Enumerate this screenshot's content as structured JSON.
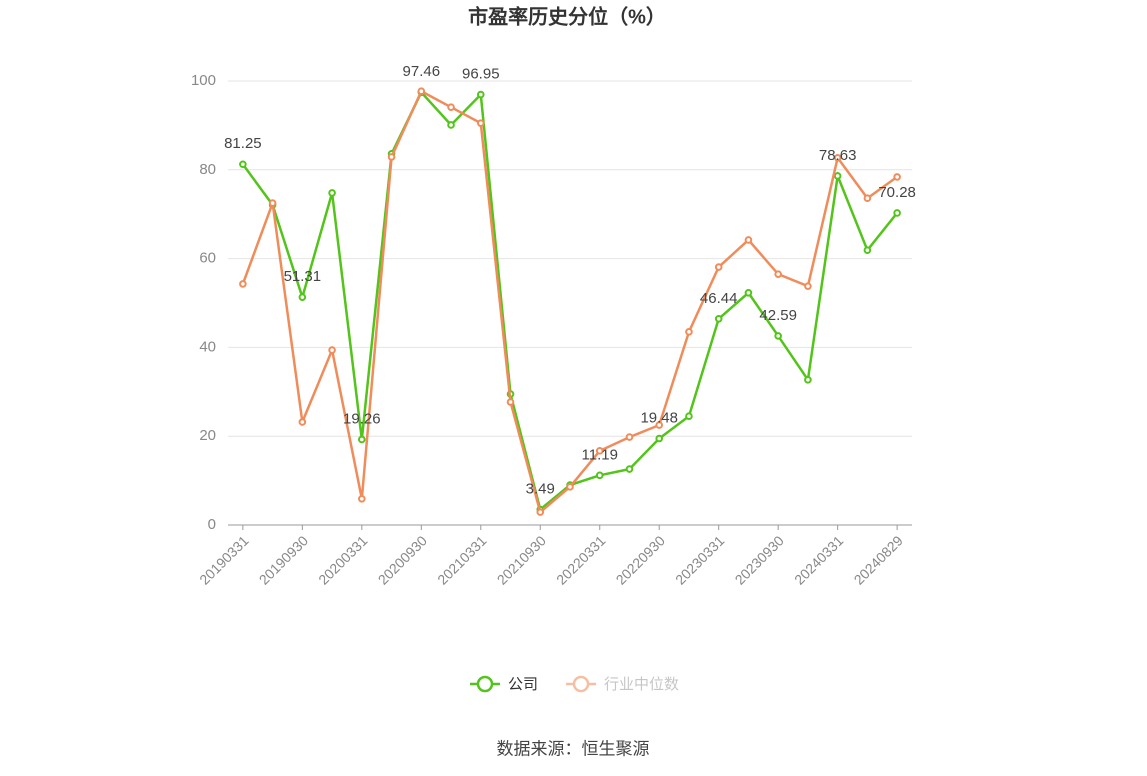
{
  "chart_data": {
    "type": "line",
    "title": "市盈率历史分位（%）",
    "categories": [
      "20190331",
      null,
      "20190930",
      null,
      "20200331",
      null,
      "20200930",
      null,
      "20210331",
      null,
      "20210930",
      null,
      "20220331",
      null,
      "20220930",
      null,
      "20230331",
      null,
      "20230930",
      null,
      "20240331",
      null,
      "20240829"
    ],
    "series": [
      {
        "name": "公司",
        "color": "#52c41a",
        "values": [
          81.25,
          72.1,
          51.31,
          74.8,
          19.26,
          83.6,
          97.46,
          90.1,
          96.95,
          29.5,
          3.49,
          9.0,
          11.19,
          12.6,
          19.48,
          24.5,
          46.44,
          52.3,
          42.59,
          32.7,
          78.63,
          61.9,
          70.28
        ]
      },
      {
        "name": "行业中位数",
        "color": "#f08c5a",
        "values": [
          54.3,
          72.5,
          23.2,
          39.4,
          5.9,
          82.9,
          97.7,
          94.1,
          90.5,
          27.7,
          2.9,
          8.6,
          16.7,
          19.8,
          22.5,
          43.5,
          58.1,
          64.2,
          56.5,
          53.8,
          82.7,
          73.6,
          78.4
        ]
      }
    ],
    "ylim": [
      0,
      100
    ],
    "yticks": [
      0,
      20,
      40,
      60,
      80,
      100
    ],
    "grid": true,
    "legend": "bottom",
    "source": "数据来源：恒生聚源"
  }
}
